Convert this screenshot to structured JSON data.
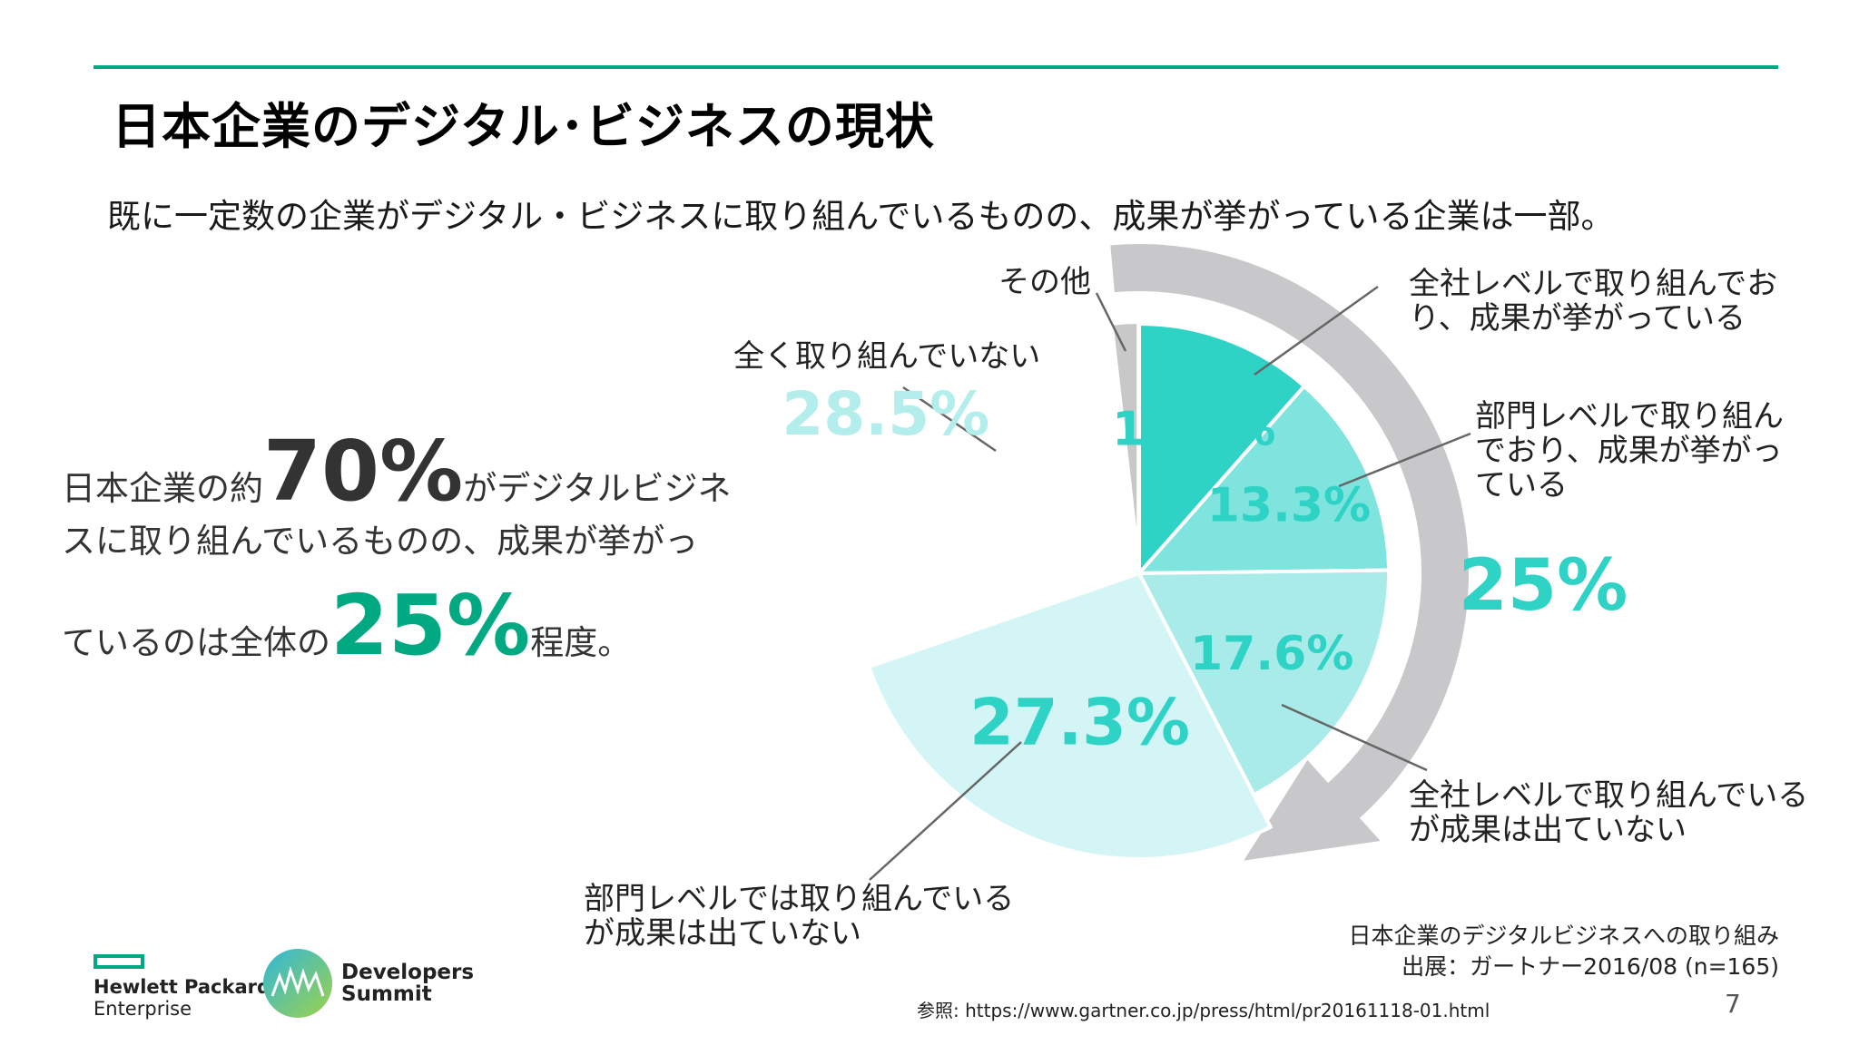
{
  "header": {
    "title": "日本企業のデジタル･ビジネスの現状",
    "subtitle": "既に一定数の企業がデジタル・ビジネスに取り組んでいるものの、成果が挙がっている企業は一部。"
  },
  "summary": {
    "part1": "日本企業の約",
    "pct70": "70%",
    "part2": "がデジタルビジネ",
    "part3": "スに取り組んでいるものの、成果が挙がっ",
    "part4": "ているのは全体の",
    "pct25": "25%",
    "part5": "程度。"
  },
  "chart_data": {
    "type": "pie",
    "start_angle_deg": 0,
    "direction": "clockwise",
    "slices": [
      {
        "label": "全社レベルで取り組んでおり、成果が挙がっている",
        "value": 11.5,
        "display": "11.5%",
        "color": "#2ed3c6"
      },
      {
        "label": "部門レベルで取り組んでおり、成果が挙がっている",
        "value": 13.3,
        "display": "13.3%",
        "color": "#7fe3de"
      },
      {
        "label": "全社レベルで取り組んでいるが成果は出ていない",
        "value": 17.6,
        "display": "17.6%",
        "color": "#a9ebe8"
      },
      {
        "label": "部門レベルでは取り組んでいるが成果は出ていない",
        "value": 27.3,
        "display": "27.3%",
        "color": "#d4f5f5"
      },
      {
        "label": "全く取り組んでいない",
        "value": 28.5,
        "display": "28.5%",
        "color": "#ffffff"
      },
      {
        "label": "その他",
        "value": 1.8,
        "display": "",
        "color": "#c8c8c8"
      }
    ],
    "highlight": {
      "label": "25%",
      "covers": [
        "全社レベルで取り組んでおり、成果が挙がっている",
        "部門レベルで取り組んでおり、成果が挙がっている"
      ]
    },
    "label_color": "#2ed3c6",
    "label_color_light": "#b3eeec",
    "accent": "#01a982"
  },
  "callouts": {
    "other": "その他",
    "none": "全く取り組んでいない",
    "company_success_1": "全社レベルで取り組んでお",
    "company_success_2": "り、成果が挙がっている",
    "dept_success_1": "部門レベルで取り組ん",
    "dept_success_2": "でおり、成果が挙がっ",
    "dept_success_3": "ている",
    "company_nosuccess_1": "全社レベルで取り組んでいる",
    "company_nosuccess_2": "が成果は出ていない",
    "dept_nosuccess_1": "部門レベルでは取り組んでいる",
    "dept_nosuccess_2": "が成果は出ていない"
  },
  "source": {
    "line1": "日本企業のデジタルビジネスへの取り組み",
    "line2": "出展：ガートナー2016/08 (n=165)"
  },
  "reference": "参照: https://www.gartner.co.jp/press/html/pr20161118-01.html",
  "page_number": "7",
  "logos": {
    "hpe_line1": "Hewlett Packard",
    "hpe_line2": "Enterprise",
    "devsum_line1": "Developers",
    "devsum_line2": "Summit"
  }
}
